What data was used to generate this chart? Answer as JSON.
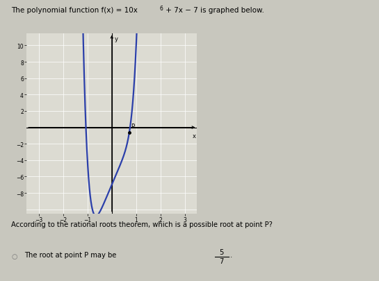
{
  "xlabel": "x",
  "ylabel": "y",
  "xlim": [
    -3.5,
    3.5
  ],
  "ylim": [
    -10.5,
    11.5
  ],
  "xtick_vals": [
    -3,
    -2,
    -1,
    1,
    2,
    3
  ],
  "ytick_vals": [
    -8,
    -6,
    -4,
    -2,
    2,
    4,
    6,
    8,
    10
  ],
  "curve_color": "#2b3faa",
  "curve_linewidth": 1.6,
  "point_P_x": 0.7142857,
  "point_P_label": "P",
  "bg_color": "#c8c7be",
  "plot_bg": "#dcdbd2",
  "grid_color": "#ffffff",
  "question_text": "According to the rational roots theorem, which is a possible root at point P?",
  "answer_text": "The root at point P may be ",
  "fraction_num": "5",
  "fraction_den": "7",
  "title_main": "The polynomial function f(x) = 10x",
  "title_sup": "6",
  "title_end": " + 7x − 7 is graphed below."
}
